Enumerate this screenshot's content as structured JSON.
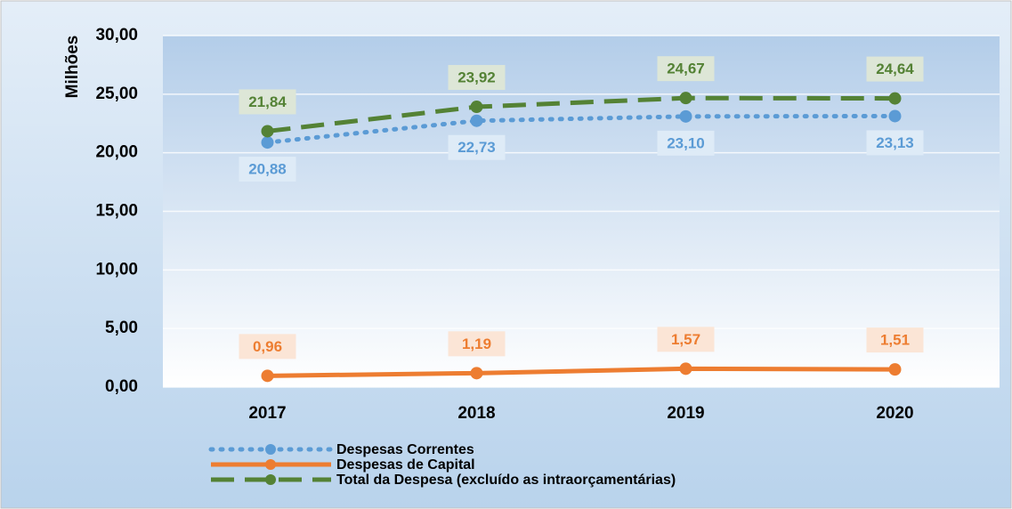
{
  "chart_data": {
    "type": "line",
    "y_label": "Milhões",
    "categories": [
      "2017",
      "2018",
      "2019",
      "2020"
    ],
    "series": [
      {
        "name": "Despesas Correntes",
        "color": "#5b9bd5",
        "dash": "dot",
        "values": [
          20.88,
          22.73,
          23.1,
          23.13
        ],
        "value_labels": [
          "20,88",
          "22,73",
          "23,10",
          "23,13"
        ],
        "label_position": "below"
      },
      {
        "name": "Despesas de Capital",
        "color": "#ed7d31",
        "dash": "solid",
        "values": [
          0.96,
          1.19,
          1.57,
          1.51
        ],
        "value_labels": [
          "0,96",
          "1,19",
          "1,57",
          "1,51"
        ],
        "label_position": "above"
      },
      {
        "name": "Total da Despesa (excluído as intraorçamentárias)",
        "color": "#548235",
        "dash": "dash",
        "values": [
          21.84,
          23.92,
          24.67,
          24.64
        ],
        "value_labels": [
          "21,84",
          "23,92",
          "24,67",
          "24,64"
        ],
        "label_position": "above"
      }
    ],
    "ylim": [
      0,
      30
    ],
    "yticks": [
      {
        "value": 0,
        "label": "0,00"
      },
      {
        "value": 5,
        "label": "5,00"
      },
      {
        "value": 10,
        "label": "10,00"
      },
      {
        "value": 15,
        "label": "15,00"
      },
      {
        "value": 20,
        "label": "20,00"
      },
      {
        "value": 25,
        "label": "25,00"
      },
      {
        "value": 30,
        "label": "30,00"
      }
    ],
    "grid": true,
    "legend": "bottom"
  }
}
